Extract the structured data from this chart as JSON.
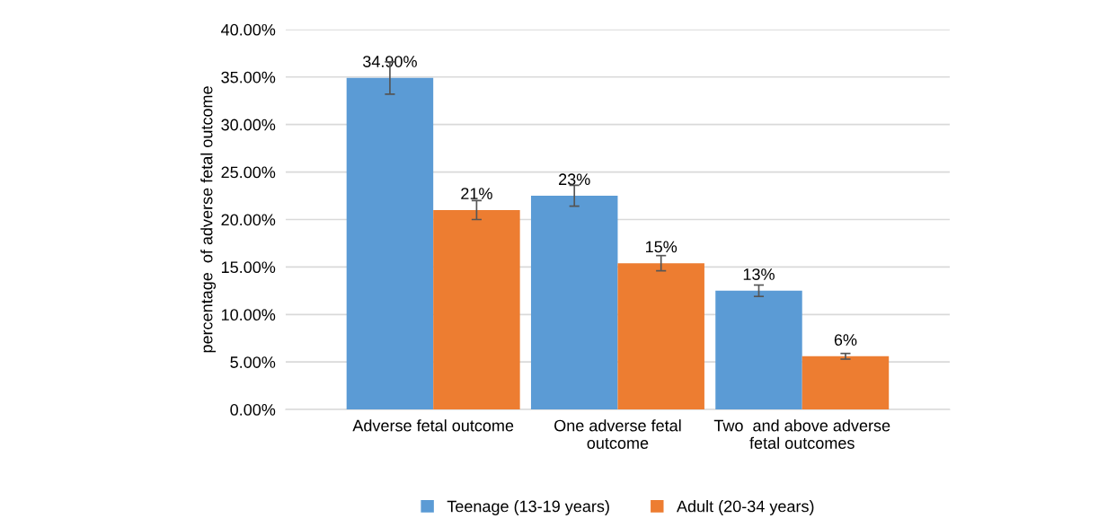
{
  "chart_data": {
    "type": "bar",
    "ylabel": "percentage  of adverse fetal outcome",
    "categories": [
      "Adverse fetal outcome",
      "One adverse fetal\noutcome",
      "Two  and above adverse\nfetal outcomes"
    ],
    "series": [
      {
        "name": "Teenage (13-19 years)",
        "color": "#5b9bd5",
        "values": [
          34.9,
          22.5,
          12.5
        ],
        "errors": [
          1.7,
          1.1,
          0.6
        ],
        "value_labels": [
          "34.90%",
          "23%",
          "13%"
        ]
      },
      {
        "name": "Adult (20-34 years)",
        "color": "#ed7d31",
        "values": [
          21.0,
          15.4,
          5.6
        ],
        "errors": [
          1.0,
          0.8,
          0.3
        ],
        "value_labels": [
          "21%",
          "15%",
          "6%"
        ]
      }
    ],
    "ylim": [
      0,
      40
    ],
    "yticks": [
      {
        "value": 0,
        "label": "0.00%"
      },
      {
        "value": 5,
        "label": "5.00%"
      },
      {
        "value": 10,
        "label": "10.00%"
      },
      {
        "value": 15,
        "label": "15.00%"
      },
      {
        "value": 20,
        "label": "20.00%"
      },
      {
        "value": 25,
        "label": "25.00%"
      },
      {
        "value": 30,
        "label": "30.00%"
      },
      {
        "value": 35,
        "label": "35.00%"
      },
      {
        "value": 40,
        "label": "40.00%"
      }
    ],
    "grid": "y",
    "legend": "bottom"
  }
}
